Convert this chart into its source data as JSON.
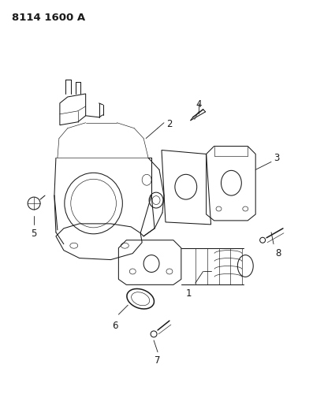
{
  "title": "8114 1600 A",
  "bg": "#ffffff",
  "lc": "#1a1a1a",
  "lw": 0.75,
  "thin": 0.45,
  "thick": 1.1
}
